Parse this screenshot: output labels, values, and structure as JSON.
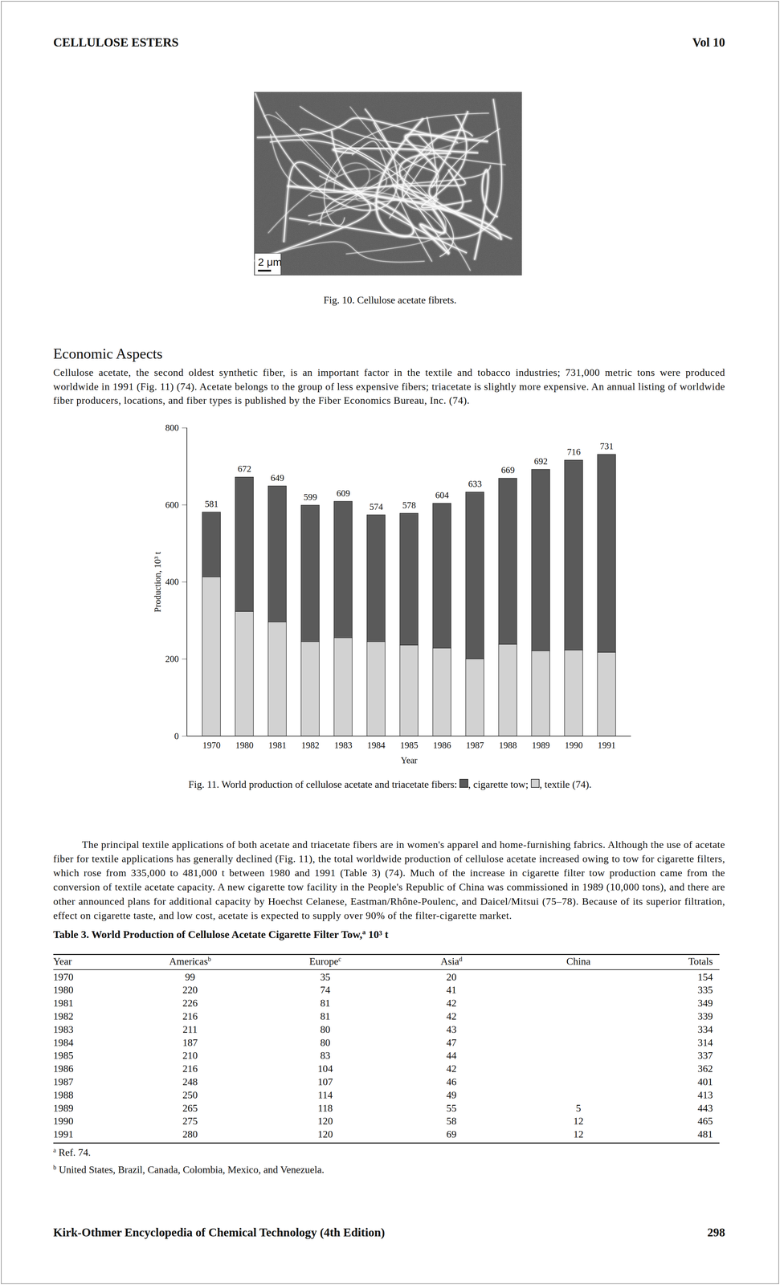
{
  "header": {
    "left": "CELLULOSE ESTERS",
    "right": "Vol 10"
  },
  "figure_10": {
    "scale_bar": "2 μm",
    "caption": "Fig. 10. Cellulose acetate fibrets."
  },
  "section_heading": "Economic Aspects",
  "paragraphs": [
    "Cellulose acetate, the second oldest synthetic fiber, is an important factor in the textile and tobacco industries; 731,000 metric tons were produced worldwide in 1991 (Fig. 11) (74). Acetate belongs to the group of less expensive fibers; triacetate is slightly more expensive. An annual listing of worldwide fiber producers, locations, and fiber types is published by the Fiber Economics Bureau, Inc. (74).",
    "The principal textile applications of both acetate and triacetate fibers are in women's apparel and home-furnishing fabrics. Although the use of acetate fiber for textile applications has generally declined (Fig. 11), the total worldwide production of cellulose acetate increased owing to tow for cigarette filters, which rose from 335,000 to 481,000 t between 1980 and 1991 (Table 3) (74). Much of the increase in cigarette filter tow production came from the conversion of textile acetate capacity. A new cigarette tow facility in the People's Republic of China was commissioned in 1989 (10,000 tons), and there are other announced plans for additional capacity by Hoechst Celanese, Eastman/Rhône-Poulenc, and Daicel/Mitsui (75–78). Because of its superior filtration, effect on cigarette taste, and low cost, acetate is expected to supply over 90% of the filter-cigarette market."
  ],
  "chart_data": {
    "type": "bar",
    "stacked": true,
    "categories": [
      "1970",
      "1980",
      "1981",
      "1982",
      "1983",
      "1984",
      "1985",
      "1986",
      "1987",
      "1988",
      "1989",
      "1990",
      "1991"
    ],
    "series": [
      {
        "name": "cigarette tow",
        "color": "#5a5a5a",
        "values": [
          168,
          349,
          353,
          354,
          354,
          329,
          342,
          376,
          433,
          431,
          471,
          493,
          514
        ]
      },
      {
        "name": "textile",
        "color": "#d2d2d2",
        "values": [
          413,
          323,
          296,
          245,
          255,
          245,
          236,
          228,
          200,
          238,
          221,
          223,
          217
        ]
      }
    ],
    "totals": [
      581,
      672,
      649,
      599,
      609,
      574,
      578,
      604,
      633,
      669,
      692,
      716,
      731
    ],
    "ylim": [
      0,
      800
    ],
    "yticks": [
      0,
      200,
      400,
      600,
      800
    ],
    "ylabel": "Production, 10³ t",
    "xlabel": "Year",
    "caption_parts": [
      "Fig. 11. World production of cellulose acetate and triacetate fibers: ",
      ", cigarette tow; ",
      ", textile (74)."
    ]
  },
  "table": {
    "title": {
      "text": "Table 3. World Production of Cellulose Acetate Cigarette Filter Tow,",
      "sup": "a",
      "after": " 10³ t"
    },
    "columns": [
      {
        "text": "Year"
      },
      {
        "text": "Americas",
        "sup": "b"
      },
      {
        "text": "Europe",
        "sup": "c"
      },
      {
        "text": "Asia",
        "sup": "d"
      },
      {
        "text": "China"
      },
      {
        "text": "Totals"
      }
    ],
    "rows": [
      [
        1970,
        99,
        35,
        20,
        null,
        154
      ],
      [
        1980,
        220,
        74,
        41,
        null,
        335
      ],
      [
        1981,
        226,
        81,
        42,
        null,
        349
      ],
      [
        1982,
        216,
        81,
        42,
        null,
        339
      ],
      [
        1983,
        211,
        80,
        43,
        null,
        334
      ],
      [
        1984,
        187,
        80,
        47,
        null,
        314
      ],
      [
        1985,
        210,
        83,
        44,
        null,
        337
      ],
      [
        1986,
        216,
        104,
        42,
        null,
        362
      ],
      [
        1987,
        248,
        107,
        46,
        null,
        401
      ],
      [
        1988,
        250,
        114,
        49,
        null,
        413
      ],
      [
        1989,
        265,
        118,
        55,
        5,
        443
      ],
      [
        1990,
        275,
        120,
        58,
        12,
        465
      ],
      [
        1991,
        280,
        120,
        69,
        12,
        481
      ]
    ],
    "footnotes": [
      {
        "mark": "a",
        "text": "Ref. 74."
      },
      {
        "mark": "b",
        "text": "United States, Brazil, Canada, Colombia, Mexico, and Venezuela."
      }
    ]
  },
  "footer": {
    "left": "Kirk-Othmer Encyclopedia of Chemical Technology (4th Edition)",
    "right": "298"
  }
}
